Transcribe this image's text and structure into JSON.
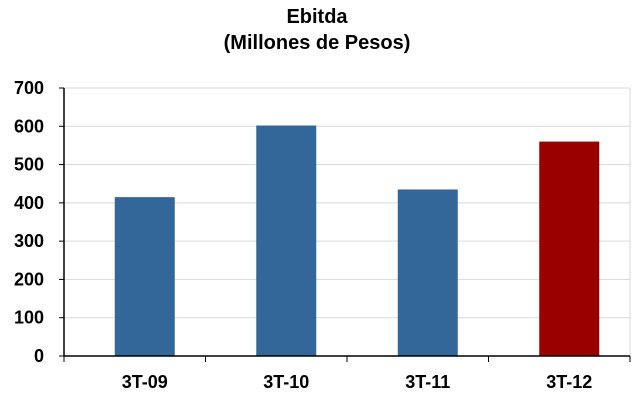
{
  "chart_data": {
    "type": "bar",
    "title": "Ebitda",
    "subtitle": "(Millones de Pesos)",
    "categories": [
      "3T-09",
      "3T-10",
      "3T-11",
      "3T-12"
    ],
    "values": [
      415,
      602,
      435,
      560
    ],
    "ylim": [
      0,
      700
    ],
    "yticks": [
      0,
      100,
      200,
      300,
      400,
      500,
      600,
      700
    ],
    "grid": true,
    "legend": "none",
    "colors": {
      "bar_default": "#336699",
      "bar_highlight": "#990000",
      "grid": "#d9d9d9",
      "axis": "#000000"
    },
    "highlight_index": 3
  }
}
